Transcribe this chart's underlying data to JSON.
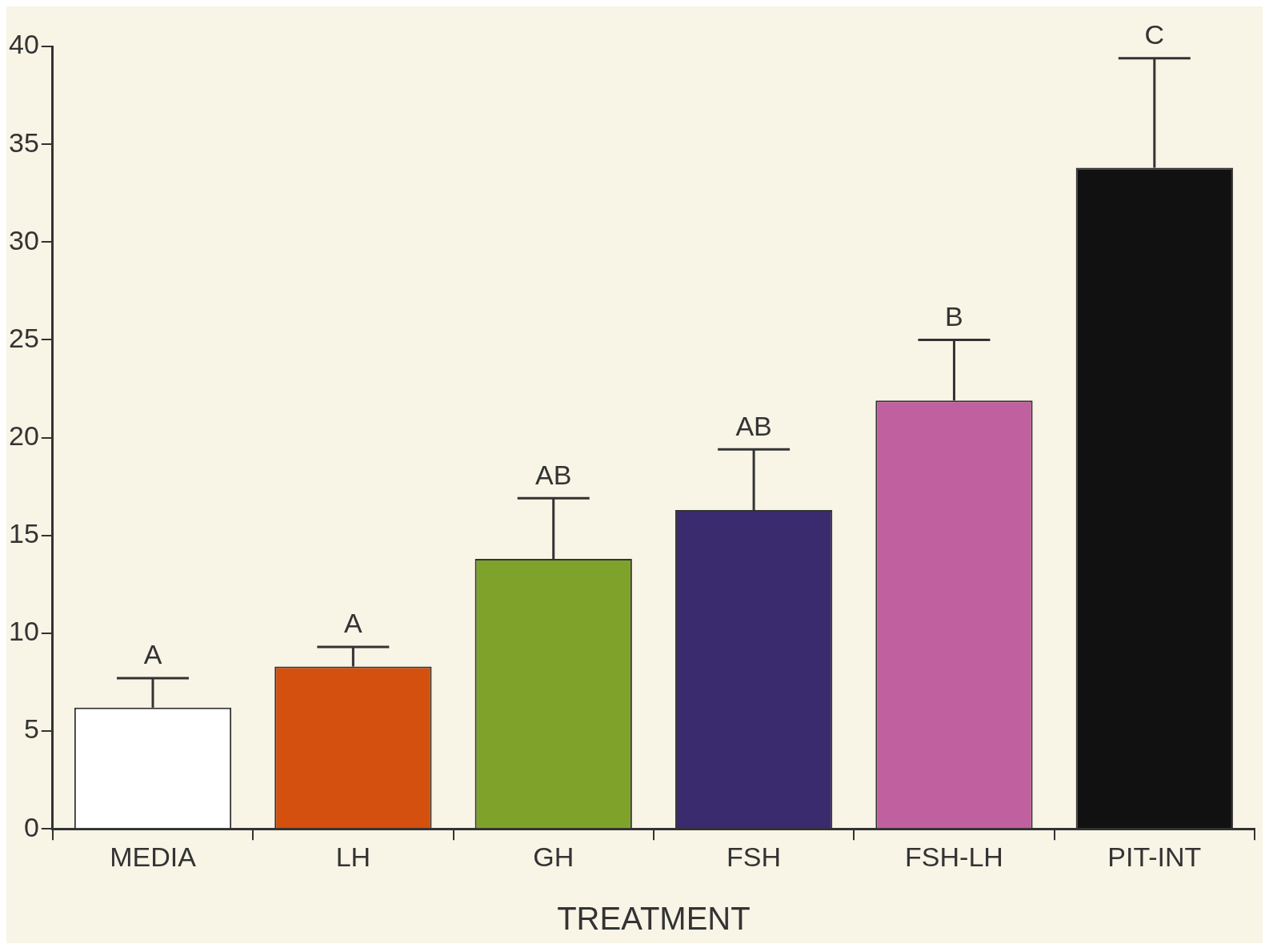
{
  "chart_data": {
    "type": "bar",
    "xlabel": "TREATMENT",
    "categories": [
      "MEDIA",
      "LH",
      "GH",
      "FSH",
      "FSH-LH",
      "PIT-INT"
    ],
    "values": [
      6.2,
      8.3,
      13.8,
      16.3,
      21.9,
      33.8
    ],
    "errors": [
      [
        6.2,
        7.7
      ],
      [
        8.3,
        9.3
      ],
      [
        13.8,
        16.9
      ],
      [
        16.3,
        19.4
      ],
      [
        21.9,
        25.0
      ],
      [
        33.8,
        39.4
      ]
    ],
    "colors": [
      "#ffffff",
      "#d4500f",
      "#7fa32a",
      "#3a2a6e",
      "#c0609e",
      "#111111"
    ],
    "ylim": [
      0,
      40
    ],
    "yticks": [
      0,
      5,
      10,
      15,
      20,
      25,
      30,
      35,
      40
    ],
    "grid": false,
    "legend": false,
    "annotations": [
      {
        "text": "A",
        "x": "MEDIA",
        "y": 7.7
      },
      {
        "text": "A",
        "x": "LH",
        "y": 9.3
      },
      {
        "text": "AB",
        "x": "GH",
        "y": 16.9
      },
      {
        "text": "AB",
        "x": "FSH",
        "y": 19.4
      },
      {
        "text": "B",
        "x": "FSH-LH",
        "y": 25.0
      },
      {
        "text": "C",
        "x": "PIT-INT",
        "y": 39.4
      }
    ]
  }
}
